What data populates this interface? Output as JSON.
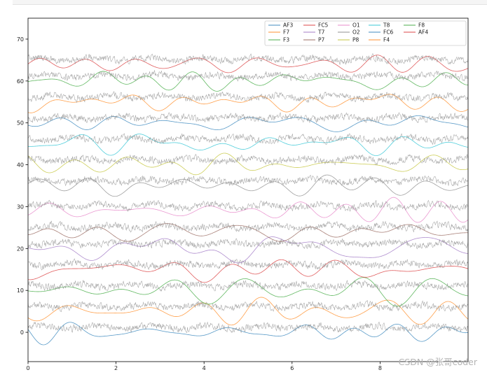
{
  "chart_data": {
    "type": "line",
    "title": "",
    "xlabel": "",
    "ylabel": "",
    "xlim": [
      0,
      10
    ],
    "ylim": [
      -7,
      75
    ],
    "x_ticks": [
      0,
      2,
      4,
      6,
      8
    ],
    "y_ticks": [
      0,
      10,
      20,
      30,
      40,
      50,
      60,
      70
    ],
    "grid": false,
    "legend": {
      "placement": "top-right",
      "columns": 6,
      "entries": [
        "AF3",
        "F7",
        "F3",
        "FC5",
        "T7",
        "P7",
        "O1",
        "O2",
        "P8",
        "T8",
        "FC6",
        "F4",
        "F8",
        "AF4"
      ]
    },
    "series": [
      {
        "name": "AF3",
        "color": "#1f77b4",
        "baseline": 0
      },
      {
        "name": "F7",
        "color": "#ff7f0e",
        "baseline": 5
      },
      {
        "name": "F3",
        "color": "#2ca02c",
        "baseline": 10
      },
      {
        "name": "FC5",
        "color": "#d62728",
        "baseline": 15
      },
      {
        "name": "T7",
        "color": "#9467bd",
        "baseline": 20
      },
      {
        "name": "P7",
        "color": "#8c564b",
        "baseline": 24
      },
      {
        "name": "O1",
        "color": "#e377c2",
        "baseline": 29
      },
      {
        "name": "O2",
        "color": "#7f7f7f",
        "baseline": 35
      },
      {
        "name": "P8",
        "color": "#bcbd22",
        "baseline": 40
      },
      {
        "name": "T8",
        "color": "#17becf",
        "baseline": 45
      },
      {
        "name": "FC6",
        "color": "#1f77b4",
        "baseline": 50
      },
      {
        "name": "F4",
        "color": "#ff7f0e",
        "baseline": 55
      },
      {
        "name": "F8",
        "color": "#2ca02c",
        "baseline": 60
      },
      {
        "name": "AF4",
        "color": "#d62728",
        "baseline": 64
      }
    ],
    "overlay_series_color": "#8c8c8c"
  },
  "watermark": "CSDN @张哥coder"
}
